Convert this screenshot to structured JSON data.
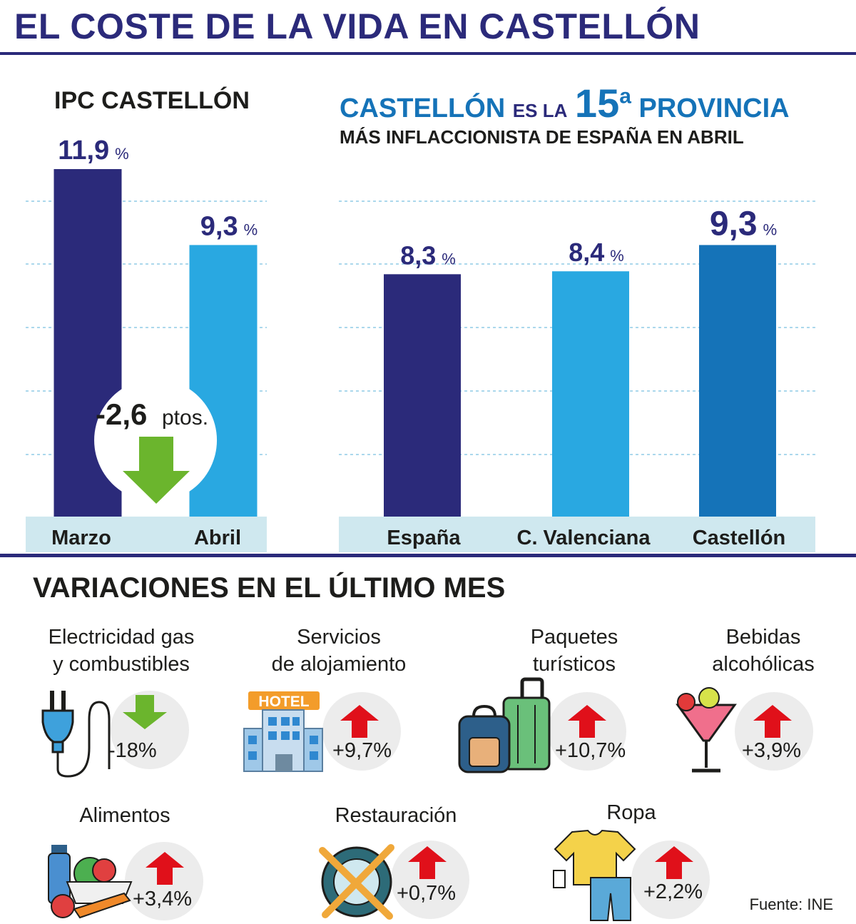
{
  "title": "EL COSTE DE LA VIDA EN CASTELLÓN",
  "left_chart_title": "IPC CASTELLÓN",
  "right_chart_title": {
    "part1": "CASTELLÓN",
    "part2": "ES LA",
    "rank": "15",
    "rank_suffix": "a",
    "part3": "PROVINCIA",
    "subtitle": "MÁS INFLACCIONISTA DE ESPAÑA EN ABRIL"
  },
  "drop_badge": {
    "value": "-2,6",
    "unit": "ptos."
  },
  "percent_sign": "%",
  "colors": {
    "navy": "#2b2a7a",
    "light_blue": "#29a8e1",
    "mid_blue": "#1573b8",
    "axis_band": "#cfe8ef",
    "green_arrow": "#6bb52d",
    "red_arrow": "#e0101a"
  },
  "chart_data": [
    {
      "type": "bar",
      "title": "IPC CASTELLÓN",
      "categories": [
        "Marzo",
        "Abril"
      ],
      "values": [
        11.9,
        9.3
      ],
      "value_labels": [
        "11,9",
        "9,3"
      ],
      "colors": [
        "#2b2a7a",
        "#29a8e1"
      ],
      "ylim": [
        0,
        11.9
      ]
    },
    {
      "type": "bar",
      "title": "CASTELLÓN ES LA 15ª PROVINCIA MÁS INFLACCIONISTA DE ESPAÑA EN ABRIL",
      "categories": [
        "España",
        "C. Valenciana",
        "Castellón"
      ],
      "values": [
        8.3,
        8.4,
        9.3
      ],
      "value_labels": [
        "8,3",
        "8,4",
        "9,3"
      ],
      "colors": [
        "#2b2a7a",
        "#29a8e1",
        "#1573b8"
      ],
      "ylim": [
        0,
        11.9
      ]
    }
  ],
  "variations": {
    "title": "VARIACIONES EN EL ÚLTIMO MES",
    "items": [
      {
        "line1": "Electricidad gas",
        "line2": "y combustibles",
        "value": "-18%",
        "direction": "down",
        "icon": "plug-icon"
      },
      {
        "line1": "Servicios",
        "line2": "de alojamiento",
        "value": "+9,7%",
        "direction": "up",
        "icon": "hotel-icon",
        "icon_text": "HOTEL"
      },
      {
        "line1": "Paquetes",
        "line2": "turísticos",
        "value": "+10,7%",
        "direction": "up",
        "icon": "luggage-icon"
      },
      {
        "line1": "Bebidas",
        "line2": "alcohólicas",
        "value": "+3,9%",
        "direction": "up",
        "icon": "cocktail-icon"
      },
      {
        "line1": "Alimentos",
        "line2": "",
        "value": "+3,4%",
        "direction": "up",
        "icon": "groceries-icon"
      },
      {
        "line1": "Restauración",
        "line2": "",
        "value": "+0,7%",
        "direction": "up",
        "icon": "cutlery-icon"
      },
      {
        "line1": "Ropa",
        "line2": "",
        "value": "+2,2%",
        "direction": "up",
        "icon": "clothes-icon"
      }
    ]
  },
  "source": "Fuente: INE"
}
